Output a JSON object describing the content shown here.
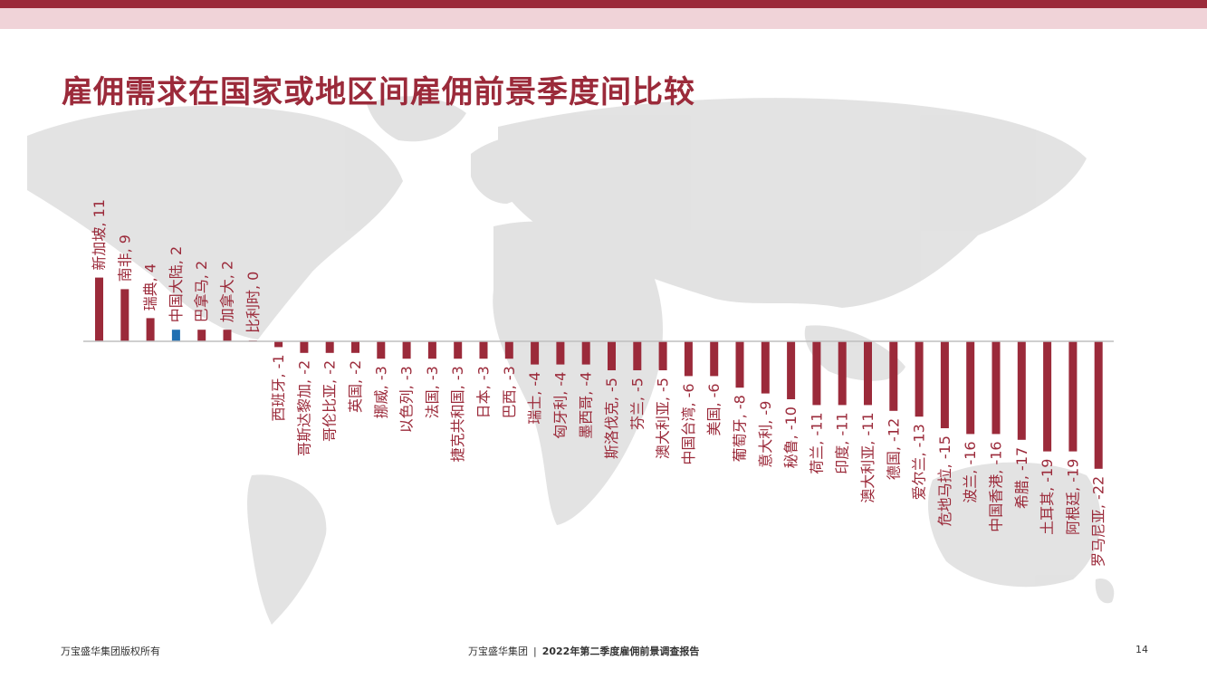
{
  "page": {
    "title": "雇佣需求在国家或地区间雇佣前景季度间比较",
    "footer_left": "万宝盛华集团版权所有",
    "footer_company": "万宝盛华集团",
    "footer_separator": "|",
    "footer_report": "2022年第二季度雇佣前景调查报告",
    "page_number": "14"
  },
  "colors": {
    "brand": "#9b2a3a",
    "band": "#f0d3d8",
    "highlight": "#1f6fb2",
    "map": "#d9d9d9"
  },
  "chart_data": {
    "type": "bar",
    "orientation": "vertical",
    "label_format": "{name}, {value}",
    "categories": [
      "新加坡",
      "南非",
      "瑞典",
      "中国大陆",
      "巴拿马",
      "加拿大",
      "比利时",
      "西班牙",
      "哥斯达黎加",
      "哥伦比亚",
      "英国",
      "挪威",
      "以色列",
      "法国",
      "捷克共和国",
      "日本",
      "巴西",
      "瑞士",
      "匈牙利",
      "墨西哥",
      "斯洛伐克",
      "芬兰",
      "澳大利亚",
      "中国台湾",
      "美国",
      "葡萄牙",
      "意大利",
      "秘鲁",
      "荷兰",
      "印度",
      "澳大利亚",
      "德国",
      "爱尔兰",
      "危地马拉",
      "波兰",
      "中国香港",
      "希腊",
      "土耳其",
      "阿根廷",
      "罗马尼亚"
    ],
    "values": [
      11,
      9,
      4,
      2,
      2,
      2,
      0,
      -1,
      -2,
      -2,
      -2,
      -3,
      -3,
      -3,
      -3,
      -3,
      -3,
      -4,
      -4,
      -4,
      -5,
      -5,
      -5,
      -6,
      -6,
      -8,
      -9,
      -10,
      -11,
      -11,
      -11,
      -12,
      -13,
      -15,
      -16,
      -16,
      -17,
      -19,
      -19,
      -22
    ],
    "value_labels": [
      "11",
      "9",
      "4",
      "2",
      "2",
      "2",
      "0",
      "-1",
      "-2",
      "-2",
      "-2",
      "-3",
      "-3",
      "-3",
      "-3",
      "-3",
      "-3",
      "-4",
      "-4",
      "-4",
      "-5",
      "-5",
      "-5",
      "-6",
      "-6",
      "-8",
      "-9",
      "-10",
      "-11",
      "-11",
      "-11",
      "-12",
      "-13",
      "-15",
      "-16",
      "-16",
      "-17",
      "-19",
      "-19",
      "-22"
    ],
    "highlight_category": "中国大陆",
    "bar_color": "#9b2a3a",
    "highlight_color": "#1f6fb2",
    "title": "",
    "xlabel": "",
    "ylabel": "",
    "grid": false,
    "legend": "none"
  }
}
